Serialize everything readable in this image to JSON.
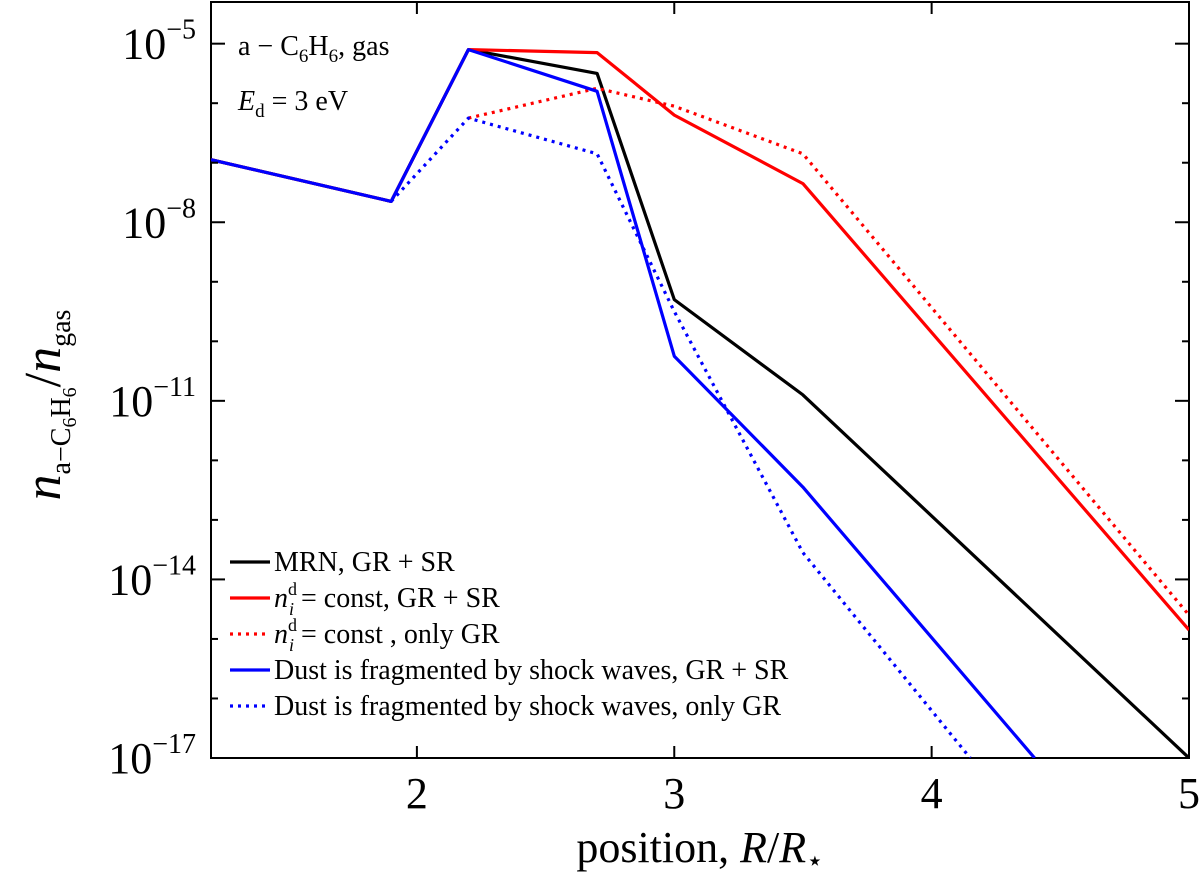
{
  "chart_data": {
    "type": "line",
    "title": "",
    "xlabel": "position,  R/R⋆",
    "ylabel": "n_{a−C6H6}/n_gas",
    "x_scale": "linear",
    "y_scale": "log",
    "xlim": [
      1.2,
      5.0
    ],
    "ylim_log10": [
      -17,
      -4.3
    ],
    "x_ticks": [
      2,
      3,
      4,
      5
    ],
    "x_tick_labels": [
      "2",
      "3",
      "4",
      "5"
    ],
    "y_ticks_log10": [
      -17,
      -14,
      -11,
      -8,
      -5
    ],
    "y_tick_labels": [
      {
        "base": "10",
        "exp": "−17"
      },
      {
        "base": "10",
        "exp": "−14"
      },
      {
        "base": "10",
        "exp": "−11"
      },
      {
        "base": "10",
        "exp": "−8"
      },
      {
        "base": "10",
        "exp": "−5"
      }
    ],
    "annotations": [
      "a − C₆H₆,  gas",
      "E_d = 3 eV"
    ],
    "annotation_parts": {
      "line1": {
        "pre": "a − C",
        "sub1": "6",
        "mid": "H",
        "sub2": "6",
        "post": ",  gas"
      },
      "line2": {
        "sym": "E",
        "sub": "d",
        "rest": " = 3 eV"
      }
    },
    "legend_position": "lower-left",
    "series": [
      {
        "name": "MRN, GR + SR",
        "color": "#000000",
        "style": "solid",
        "x": [
          1.2,
          1.9,
          2.2,
          2.7,
          3.0,
          3.5,
          5.0
        ],
        "log10_y": [
          -6.95,
          -7.65,
          -5.1,
          -5.5,
          -9.3,
          -10.9,
          -17.0
        ]
      },
      {
        "name": "n_i^d = const, GR + SR",
        "color": "#ff0000",
        "style": "solid",
        "x": [
          1.2,
          1.9,
          2.2,
          2.7,
          3.0,
          3.5,
          5.0
        ],
        "log10_y": [
          -6.95,
          -7.65,
          -5.1,
          -5.15,
          -6.2,
          -7.35,
          -14.85
        ]
      },
      {
        "name": "n_i^d = const , only GR",
        "color": "#ff0000",
        "style": "dotted",
        "x": [
          2.2,
          2.7,
          3.0,
          3.5,
          5.0
        ],
        "log10_y": [
          -6.25,
          -5.75,
          -6.05,
          -6.85,
          -14.6
        ]
      },
      {
        "name": "Dust is fragmented by shock waves, GR + SR",
        "color": "#0000ff",
        "style": "solid",
        "x": [
          1.2,
          1.9,
          2.2,
          2.7,
          3.0,
          3.5,
          4.4
        ],
        "log10_y": [
          -6.95,
          -7.65,
          -5.1,
          -5.8,
          -10.25,
          -12.45,
          -17.0
        ]
      },
      {
        "name": "Dust is fragmented by shock waves, only GR",
        "color": "#0000ff",
        "style": "dotted",
        "x": [
          1.9,
          2.2,
          2.7,
          3.0,
          3.5,
          4.15
        ],
        "log10_y": [
          -7.65,
          -6.25,
          -6.85,
          -9.5,
          -13.55,
          -17.0
        ]
      }
    ],
    "legend_labels": [
      {
        "kind": "plain",
        "text": "MRN, GR + SR"
      },
      {
        "kind": "nid",
        "sym": "n",
        "sub": "i",
        "sup": "d",
        "rest": " = const,  GR + SR"
      },
      {
        "kind": "nid",
        "sym": "n",
        "sub": "i",
        "sup": "d",
        "rest": " = const , only GR"
      },
      {
        "kind": "plain",
        "text": "Dust is fragmented by shock waves,  GR + SR"
      },
      {
        "kind": "plain",
        "text": "Dust is fragmented by shock waves,  only GR"
      }
    ],
    "ylabel_parts": {
      "n": "n",
      "sub": "a−C",
      "sub6a": "6",
      "subH": "H",
      "sub6b": "6",
      "slash": "/",
      "n2": "n",
      "sub2": "gas"
    },
    "xlabel_parts": {
      "pre": "position,  ",
      "R": "R",
      "slash": "/",
      "R2": "R",
      "star": "⋆"
    }
  }
}
